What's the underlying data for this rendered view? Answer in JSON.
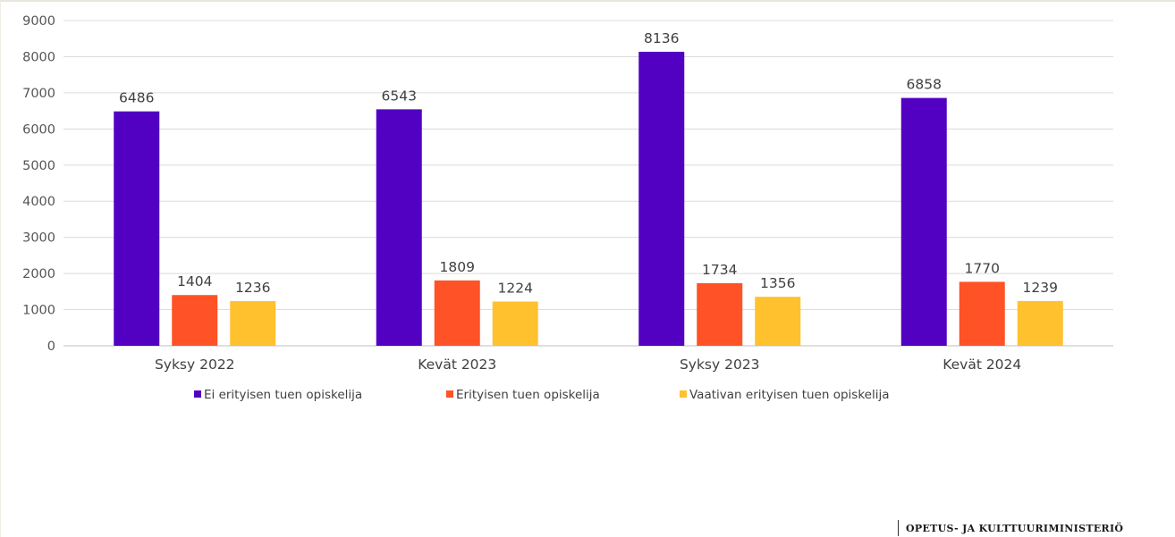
{
  "chart_data": {
    "type": "bar",
    "categories": [
      "Syksy 2022",
      "Kevät 2023",
      "Syksy 2023",
      "Kevät 2024"
    ],
    "series": [
      {
        "name": "Ei erityisen tuen opiskelija",
        "values": [
          6486,
          6543,
          8136,
          6858
        ],
        "color": "#5200c2"
      },
      {
        "name": "Erityisen tuen opiskelija",
        "values": [
          1404,
          1809,
          1734,
          1770
        ],
        "color": "#ff5226"
      },
      {
        "name": "Vaativan erityisen tuen opiskelija",
        "values": [
          1236,
          1224,
          1356,
          1239
        ],
        "color": "#ffc12e"
      }
    ],
    "yticks": [
      "0",
      "1000",
      "2000",
      "3000",
      "4000",
      "5000",
      "6000",
      "7000",
      "8000",
      "9000"
    ],
    "ylim": [
      0,
      9000
    ],
    "grid": true,
    "legend_position": "bottom"
  },
  "footer": {
    "logo_text": "OPETUS- JA KULTTUURIMINISTERIÖ"
  }
}
